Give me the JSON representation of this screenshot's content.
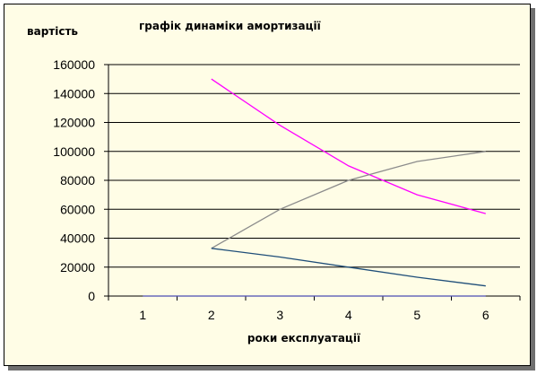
{
  "chart_data": {
    "type": "line",
    "title": "графік динаміки амортизації",
    "ylabel": "вартість",
    "xlabel": "роки експлуатації",
    "categories": [
      "1",
      "2",
      "3",
      "4",
      "5",
      "6"
    ],
    "ylim": [
      0,
      160000
    ],
    "yticks": [
      "0",
      "20000",
      "40000",
      "60000",
      "80000",
      "100000",
      "120000",
      "140000",
      "160000"
    ],
    "grid": true,
    "legend": "none",
    "series": [
      {
        "color": "#ff00ff",
        "values": [
          null,
          150000,
          118000,
          90000,
          70000,
          57000
        ]
      },
      {
        "color": "#8c8c8c",
        "values": [
          null,
          33000,
          60000,
          80000,
          93000,
          100000
        ]
      },
      {
        "color": "#1f4e79",
        "values": [
          null,
          33000,
          27000,
          20000,
          13000,
          7000
        ]
      },
      {
        "color": "#4b4bb4",
        "values": [
          0,
          0,
          0,
          0,
          0,
          0
        ]
      }
    ]
  }
}
